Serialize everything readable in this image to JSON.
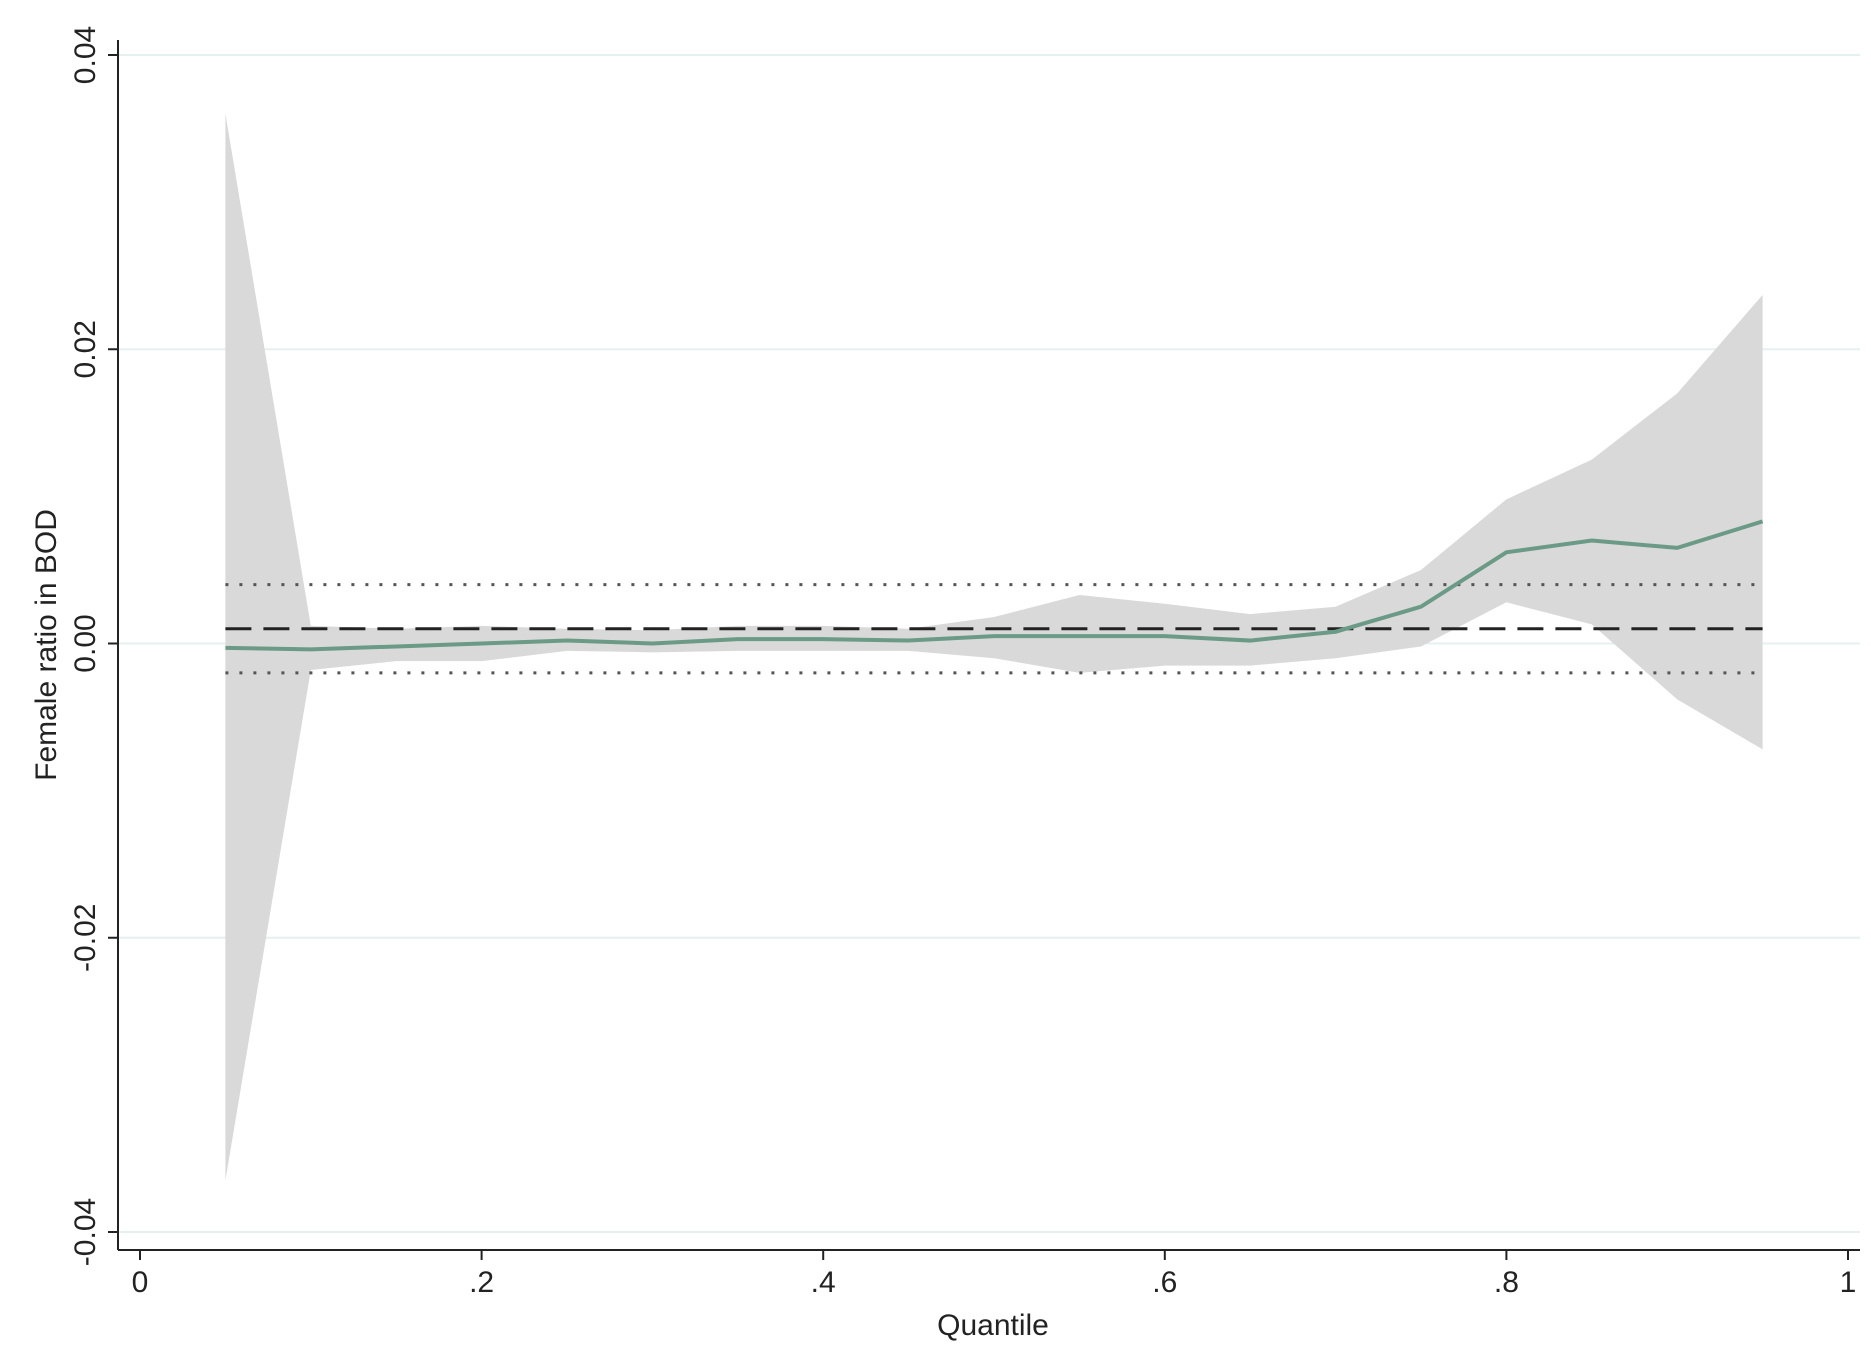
{
  "chart_data": {
    "type": "line",
    "title": "",
    "xlabel": "Quantile",
    "ylabel": "Female ratio in BOD",
    "xlim": [
      0,
      1
    ],
    "ylim": [
      -0.04,
      0.04
    ],
    "x_ticks": [
      0,
      0.2,
      0.4,
      0.6,
      0.8,
      1
    ],
    "x_tick_labels": [
      "0",
      ".2",
      ".4",
      ".6",
      ".8",
      "1"
    ],
    "y_ticks": [
      -0.04,
      -0.02,
      0.0,
      0.02,
      0.04
    ],
    "y_tick_labels": [
      "-0.04",
      "-0.02",
      "0.00",
      "0.02",
      "0.04"
    ],
    "grid": "horizontal",
    "legend": "none",
    "x": [
      0.05,
      0.1,
      0.15,
      0.2,
      0.25,
      0.3,
      0.35,
      0.4,
      0.45,
      0.5,
      0.55,
      0.6,
      0.65,
      0.7,
      0.75,
      0.8,
      0.85,
      0.9,
      0.95
    ],
    "series": [
      {
        "role": "quantile-estimate",
        "values": [
          -0.0003,
          -0.0004,
          -0.0002,
          0.0,
          0.0002,
          0.0,
          0.0003,
          0.0003,
          0.0002,
          0.0005,
          0.0005,
          0.0005,
          0.0002,
          0.0008,
          0.0025,
          0.0062,
          0.007,
          0.0065,
          0.0083
        ],
        "color": "#6b9a86"
      }
    ],
    "confidence_band": {
      "lower": [
        -0.0365,
        -0.0018,
        -0.0012,
        -0.0012,
        -0.0005,
        -0.0006,
        -0.0005,
        -0.0005,
        -0.0005,
        -0.001,
        -0.002,
        -0.0015,
        -0.0015,
        -0.001,
        -0.0002,
        0.0028,
        0.0013,
        -0.0038,
        -0.0072
      ],
      "upper": [
        0.036,
        0.0012,
        0.001,
        0.0012,
        0.001,
        0.0009,
        0.0012,
        0.0012,
        0.001,
        0.0018,
        0.0033,
        0.0027,
        0.002,
        0.0025,
        0.005,
        0.0098,
        0.0125,
        0.017,
        0.0237
      ],
      "color": "#d9d9d9"
    },
    "reference_lines": [
      {
        "style": "dashed",
        "y": 0.001,
        "x_range": [
          0.05,
          0.95
        ],
        "color": "#222222"
      },
      {
        "style": "dotted",
        "y": 0.004,
        "x_range": [
          0.05,
          0.95
        ],
        "color": "#555555"
      },
      {
        "style": "dotted",
        "y": -0.002,
        "x_range": [
          0.05,
          0.95
        ],
        "color": "#555555"
      }
    ],
    "colors": {
      "background": "#ffffff",
      "gridline": "#e6f0ef",
      "axis": "#222222"
    }
  }
}
